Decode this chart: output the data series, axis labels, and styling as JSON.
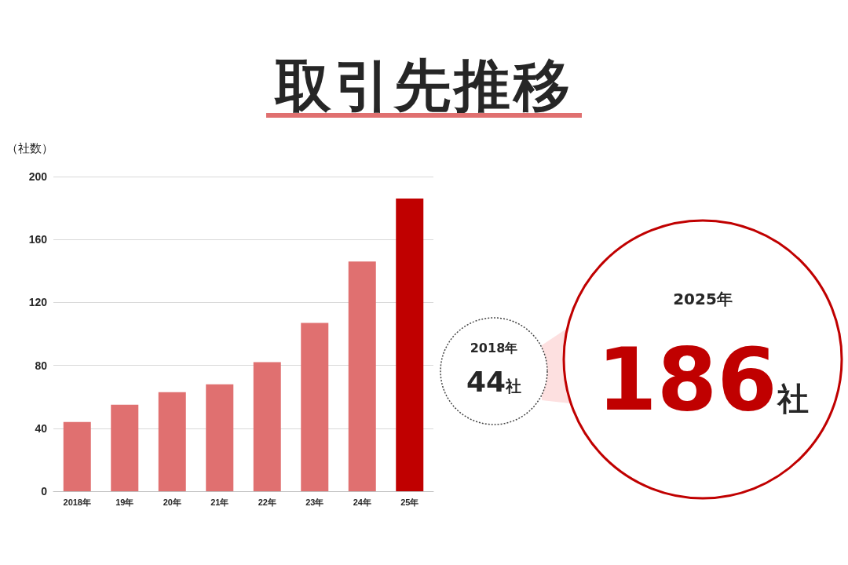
{
  "chart_data": {
    "type": "bar",
    "title": "取引先推移",
    "ylabel": "（社数）",
    "categories": [
      "2018年",
      "19年",
      "20年",
      "21年",
      "22年",
      "23年",
      "24年",
      "25年"
    ],
    "values": [
      44,
      55,
      63,
      68,
      82,
      107,
      146,
      186
    ],
    "colors": [
      "#e07070",
      "#e07070",
      "#e07070",
      "#e07070",
      "#e07070",
      "#e07070",
      "#e07070",
      "#c00000"
    ],
    "ylim": [
      0,
      200
    ],
    "yticks": [
      0,
      40,
      80,
      120,
      160,
      200
    ],
    "grid": "y",
    "annotations": [
      "2018年",
      "44社",
      "2025年",
      "186社"
    ]
  }
}
